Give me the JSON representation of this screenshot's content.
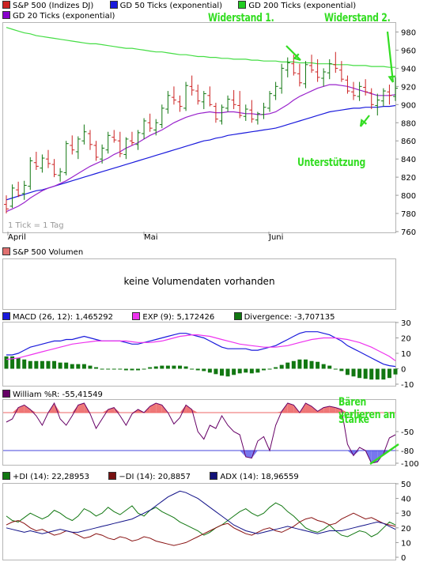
{
  "price_panel": {
    "legend": [
      {
        "label": "S&P 500 (Indizes DJ)",
        "color": "#cc2222"
      },
      {
        "label": "GD 50 Ticks (exponential)",
        "color": "#1a1adc"
      },
      {
        "label": "GD 200 Ticks (exponential)",
        "color": "#22cc22"
      },
      {
        "label": "GD 20 Ticks (exponential)",
        "color": "#8800cc"
      }
    ],
    "tick_note": "1 Tick = 1 Tag",
    "months": [
      "April",
      "Mai",
      "Juni"
    ],
    "annotations": {
      "resistance1": "Widerstand 1.",
      "resistance2": "Widerstand 2.",
      "support": "Unterstützung"
    }
  },
  "volume_panel": {
    "legend": "S&P 500 Volumen",
    "message": "keine Volumendaten vorhanden"
  },
  "macd_panel": {
    "legend": [
      {
        "label": "MACD (26, 12): 1,465292",
        "color": "#1a1adc"
      },
      {
        "label": "EXP (9): 5,172426",
        "color": "#ee33ee"
      },
      {
        "label": "Divergence: -3,707135",
        "color": "#117711"
      }
    ]
  },
  "williams_panel": {
    "legend": [
      {
        "label": "William %R: -55,41549",
        "color": "#660066"
      }
    ],
    "annotation_line1": "Bären verlieren an",
    "annotation_line2": "Stärke"
  },
  "dmi_panel": {
    "legend": [
      {
        "label": "+DI (14): 22,28953",
        "color": "#117711"
      },
      {
        "label": "−DI (14): 20,8857",
        "color": "#771111"
      },
      {
        "label": "ADX (14): 18,96559",
        "color": "#111177"
      }
    ]
  },
  "chart_data": [
    {
      "type": "candlestick",
      "title": "S&P 500 (Indizes DJ)",
      "x_labels": [
        "April",
        "Mai",
        "Juni"
      ],
      "ylim": [
        760,
        990
      ],
      "y_ticks": [
        760,
        780,
        800,
        820,
        840,
        860,
        880,
        900,
        920,
        940,
        960,
        980
      ],
      "ohlc": [
        [
          790,
          800,
          780,
          785
        ],
        [
          788,
          812,
          786,
          808
        ],
        [
          806,
          815,
          798,
          800
        ],
        [
          802,
          816,
          795,
          811
        ],
        [
          810,
          842,
          806,
          838
        ],
        [
          836,
          848,
          828,
          832
        ],
        [
          830,
          845,
          825,
          841
        ],
        [
          840,
          850,
          830,
          835
        ],
        [
          834,
          840,
          820,
          823
        ],
        [
          822,
          830,
          815,
          826
        ],
        [
          825,
          860,
          822,
          857
        ],
        [
          855,
          866,
          845,
          850
        ],
        [
          848,
          865,
          840,
          862
        ],
        [
          860,
          878,
          856,
          870
        ],
        [
          868,
          872,
          850,
          856
        ],
        [
          855,
          860,
          838,
          842
        ],
        [
          840,
          856,
          835,
          852
        ],
        [
          850,
          870,
          846,
          866
        ],
        [
          864,
          872,
          858,
          861
        ],
        [
          860,
          870,
          842,
          846
        ],
        [
          845,
          864,
          840,
          862
        ],
        [
          860,
          870,
          855,
          858
        ],
        [
          856,
          872,
          850,
          869
        ],
        [
          868,
          885,
          862,
          882
        ],
        [
          880,
          890,
          870,
          874
        ],
        [
          872,
          884,
          866,
          880
        ],
        [
          878,
          900,
          874,
          896
        ],
        [
          895,
          915,
          890,
          910
        ],
        [
          908,
          920,
          900,
          905
        ],
        [
          903,
          910,
          892,
          898
        ],
        [
          896,
          925,
          893,
          921
        ],
        [
          920,
          932,
          910,
          916
        ],
        [
          915,
          922,
          900,
          904
        ],
        [
          903,
          915,
          895,
          912
        ],
        [
          910,
          920,
          898,
          900
        ],
        [
          898,
          902,
          880,
          884
        ],
        [
          882,
          900,
          878,
          897
        ],
        [
          896,
          910,
          892,
          906
        ],
        [
          905,
          916,
          895,
          900
        ],
        [
          899,
          915,
          885,
          888
        ],
        [
          887,
          900,
          882,
          895
        ],
        [
          894,
          905,
          880,
          884
        ],
        [
          883,
          892,
          878,
          890
        ],
        [
          889,
          902,
          884,
          897
        ],
        [
          896,
          915,
          892,
          912
        ],
        [
          910,
          925,
          905,
          920
        ],
        [
          918,
          945,
          912,
          940
        ],
        [
          938,
          952,
          930,
          946
        ],
        [
          945,
          955,
          932,
          935
        ],
        [
          934,
          945,
          920,
          924
        ],
        [
          923,
          948,
          918,
          944
        ],
        [
          943,
          955,
          935,
          938
        ],
        [
          936,
          950,
          925,
          930
        ],
        [
          929,
          940,
          920,
          936
        ],
        [
          935,
          950,
          928,
          945
        ],
        [
          944,
          958,
          935,
          940
        ],
        [
          938,
          948,
          925,
          928
        ],
        [
          927,
          932,
          912,
          915
        ],
        [
          914,
          925,
          905,
          910
        ],
        [
          909,
          925,
          904,
          920
        ],
        [
          919,
          928,
          910,
          914
        ],
        [
          913,
          918,
          895,
          900
        ],
        [
          899,
          912,
          888,
          905
        ],
        [
          904,
          918,
          898,
          915
        ],
        [
          914,
          922,
          900,
          910
        ],
        [
          909,
          930,
          904,
          918
        ]
      ],
      "series": [
        {
          "name": "GD 200 Ticks (exponential)",
          "values": [
            985,
            983,
            981,
            979,
            978,
            976,
            975,
            974,
            973,
            972,
            971,
            970,
            969,
            968,
            967,
            967,
            966,
            965,
            964,
            963,
            962,
            962,
            961,
            960,
            959,
            958,
            958,
            957,
            956,
            955,
            955,
            954,
            953,
            953,
            952,
            952,
            951,
            951,
            950,
            950,
            950,
            949,
            949,
            948,
            948,
            948,
            947,
            947,
            947,
            946,
            946,
            946,
            945,
            945,
            945,
            944,
            944,
            944,
            943,
            943,
            943,
            942,
            942,
            942,
            941,
            941
          ]
        },
        {
          "name": "GD 50 Ticks (exponential)",
          "values": [
            795,
            797,
            799,
            801,
            803,
            805,
            806,
            808,
            810,
            812,
            814,
            816,
            818,
            820,
            822,
            824,
            826,
            828,
            830,
            832,
            834,
            836,
            838,
            840,
            842,
            844,
            846,
            848,
            850,
            852,
            854,
            856,
            858,
            860,
            861,
            863,
            864,
            866,
            867,
            868,
            869,
            870,
            871,
            872,
            873,
            874,
            876,
            878,
            880,
            882,
            884,
            886,
            888,
            890,
            892,
            893,
            894,
            895,
            896,
            896,
            897,
            897,
            897,
            898,
            898,
            899
          ]
        },
        {
          "name": "GD 20 Ticks (exponential)",
          "values": [
            782,
            785,
            788,
            792,
            797,
            801,
            805,
            808,
            810,
            813,
            816,
            820,
            824,
            828,
            832,
            835,
            838,
            841,
            845,
            848,
            852,
            855,
            858,
            862,
            866,
            869,
            872,
            876,
            880,
            883,
            886,
            888,
            890,
            891,
            892,
            891,
            891,
            892,
            892,
            891,
            890,
            890,
            889,
            889,
            890,
            892,
            896,
            900,
            905,
            909,
            912,
            915,
            918,
            920,
            922,
            922,
            921,
            920,
            918,
            916,
            914,
            912,
            910,
            910,
            910,
            911
          ]
        }
      ]
    },
    {
      "type": "line",
      "title": "MACD (26, 12)",
      "ylim": [
        -10,
        30
      ],
      "y_ticks": [
        -10,
        0,
        10,
        20,
        30
      ],
      "series": [
        {
          "name": "MACD (26, 12): 1,465292",
          "values": [
            9,
            9,
            10,
            12,
            14,
            15,
            16,
            17,
            18,
            18,
            19,
            19,
            20,
            21,
            20,
            19,
            18,
            18,
            18,
            18,
            17,
            16,
            16,
            17,
            18,
            19,
            20,
            21,
            22,
            23,
            23,
            22,
            21,
            20,
            18,
            16,
            14,
            13,
            13,
            13,
            13,
            12,
            12,
            13,
            14,
            15,
            17,
            19,
            21,
            23,
            24,
            24,
            24,
            23,
            22,
            20,
            18,
            15,
            13,
            11,
            9,
            7,
            5,
            3,
            2,
            1.5
          ]
        },
        {
          "name": "EXP (9): 5,172426",
          "values": [
            6,
            6.5,
            7,
            8,
            9,
            10,
            11,
            12,
            13,
            14,
            15,
            16,
            16.5,
            17,
            17.5,
            18,
            18,
            18,
            18,
            18,
            18,
            17.5,
            17,
            17,
            17,
            17.5,
            18,
            19,
            20,
            21,
            21.5,
            22,
            22,
            21.5,
            21,
            20,
            19,
            18,
            17,
            16,
            15.5,
            15,
            14.5,
            14,
            14,
            14,
            14.5,
            15,
            16,
            17,
            18,
            19,
            19.5,
            20,
            20,
            20,
            19.5,
            19,
            18,
            17,
            15.5,
            14,
            12,
            10,
            8,
            5.2
          ]
        },
        {
          "name": "Divergence: -3,707135",
          "type": "bar",
          "values": [
            8,
            8,
            7,
            6,
            5,
            5,
            5,
            5,
            5,
            4,
            4,
            3,
            3,
            3,
            2,
            1,
            0,
            0,
            0,
            0,
            -1,
            -1,
            -1,
            0,
            1,
            1.5,
            2,
            2,
            2,
            2,
            1.5,
            0,
            -1,
            -1.5,
            -2.5,
            -3.5,
            -4.5,
            -5,
            -4,
            -3,
            -2.5,
            -3,
            -2.5,
            -1,
            0,
            1,
            2.5,
            4,
            5,
            6,
            6,
            5,
            4.5,
            3,
            2,
            0,
            -1.5,
            -4,
            -5,
            -6,
            -6.5,
            -7,
            -7,
            -7,
            -6,
            -3.7
          ]
        }
      ]
    },
    {
      "type": "line",
      "title": "William %R",
      "ylim": [
        -100,
        0
      ],
      "y_ticks": [
        -100,
        -80,
        -50
      ],
      "series": [
        {
          "name": "William %R: -55,41549",
          "values": [
            -35,
            -30,
            -12,
            -8,
            -15,
            -25,
            -40,
            -20,
            -5,
            -30,
            -40,
            -25,
            -8,
            -5,
            -22,
            -45,
            -30,
            -15,
            -12,
            -25,
            -40,
            -22,
            -15,
            -20,
            -10,
            -5,
            -8,
            -20,
            -38,
            -28,
            -8,
            -15,
            -50,
            -62,
            -40,
            -45,
            -25,
            -40,
            -50,
            -55,
            -90,
            -92,
            -65,
            -58,
            -80,
            -40,
            -18,
            -5,
            -8,
            -20,
            -5,
            -10,
            -18,
            -12,
            -10,
            -12,
            -15,
            -70,
            -88,
            -75,
            -80,
            -100,
            -98,
            -85,
            -60,
            -55
          ]
        }
      ],
      "reference_lines": [
        -80,
        -20
      ]
    },
    {
      "type": "line",
      "title": "DMI",
      "ylim": [
        0,
        50
      ],
      "y_ticks": [
        0,
        10,
        20,
        30,
        40,
        50
      ],
      "series": [
        {
          "name": "+DI (14): 22,28953",
          "values": [
            28,
            25,
            24,
            27,
            30,
            28,
            26,
            28,
            32,
            30,
            27,
            25,
            28,
            33,
            31,
            28,
            30,
            34,
            31,
            29,
            32,
            35,
            30,
            28,
            32,
            34,
            31,
            29,
            27,
            24,
            22,
            20,
            18,
            15,
            17,
            20,
            22,
            25,
            28,
            31,
            33,
            30,
            28,
            30,
            34,
            37,
            35,
            31,
            28,
            24,
            20,
            18,
            17,
            19,
            22,
            18,
            15,
            14,
            16,
            18,
            17,
            14,
            16,
            20,
            24,
            22
          ]
        },
        {
          "name": "−DI (14): 20,8857",
          "values": [
            22,
            24,
            25,
            23,
            20,
            18,
            19,
            17,
            15,
            16,
            18,
            17,
            15,
            13,
            14,
            16,
            15,
            13,
            12,
            14,
            13,
            11,
            12,
            14,
            13,
            11,
            10,
            9,
            8,
            9,
            10,
            12,
            14,
            16,
            18,
            20,
            22,
            23,
            20,
            18,
            16,
            15,
            17,
            19,
            20,
            18,
            17,
            19,
            21,
            24,
            26,
            27,
            25,
            24,
            22,
            23,
            26,
            28,
            30,
            28,
            26,
            27,
            25,
            23,
            22,
            21
          ]
        },
        {
          "name": "ADX (14): 18,96559",
          "values": [
            20,
            19,
            18,
            17,
            18,
            17,
            16,
            17,
            18,
            19,
            18,
            17,
            17,
            18,
            19,
            20,
            21,
            22,
            23,
            24,
            25,
            26,
            28,
            30,
            32,
            35,
            38,
            41,
            43,
            45,
            44,
            42,
            40,
            37,
            34,
            31,
            28,
            25,
            22,
            20,
            18,
            17,
            16,
            17,
            18,
            19,
            20,
            21,
            20,
            19,
            18,
            17,
            16,
            17,
            18,
            18,
            18,
            19,
            20,
            21,
            22,
            23,
            24,
            23,
            21,
            19
          ]
        }
      ]
    }
  ]
}
